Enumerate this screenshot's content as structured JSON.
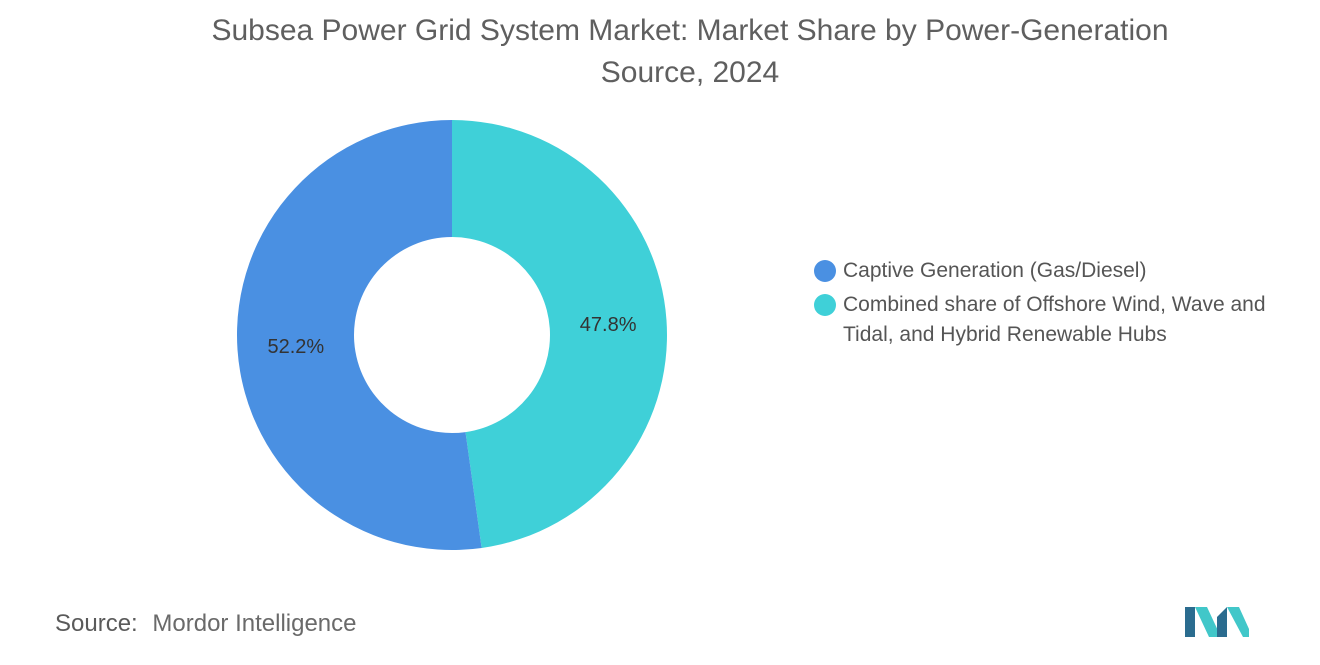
{
  "chart_data": {
    "type": "pie",
    "variant": "donut",
    "title": "Subsea Power Grid System Market: Market Share by Power-Generation Source, 2024",
    "slices": [
      {
        "label": "Captive Generation (Gas/Diesel)",
        "value": 52.2,
        "display": "52.2%",
        "color": "#4a90e2"
      },
      {
        "label": "Combined share of Offshore Wind, Wave and Tidal, and Hybrid Renewable Hubs",
        "value": 47.8,
        "display": "47.8%",
        "color": "#3fd0d8"
      }
    ],
    "legend_position": "right"
  },
  "source": {
    "key": "Source:",
    "value": "Mordor Intelligence"
  },
  "logo": {
    "name": "mordor-intelligence-logo",
    "colors": [
      "#2b6c8f",
      "#41c7c9"
    ]
  }
}
